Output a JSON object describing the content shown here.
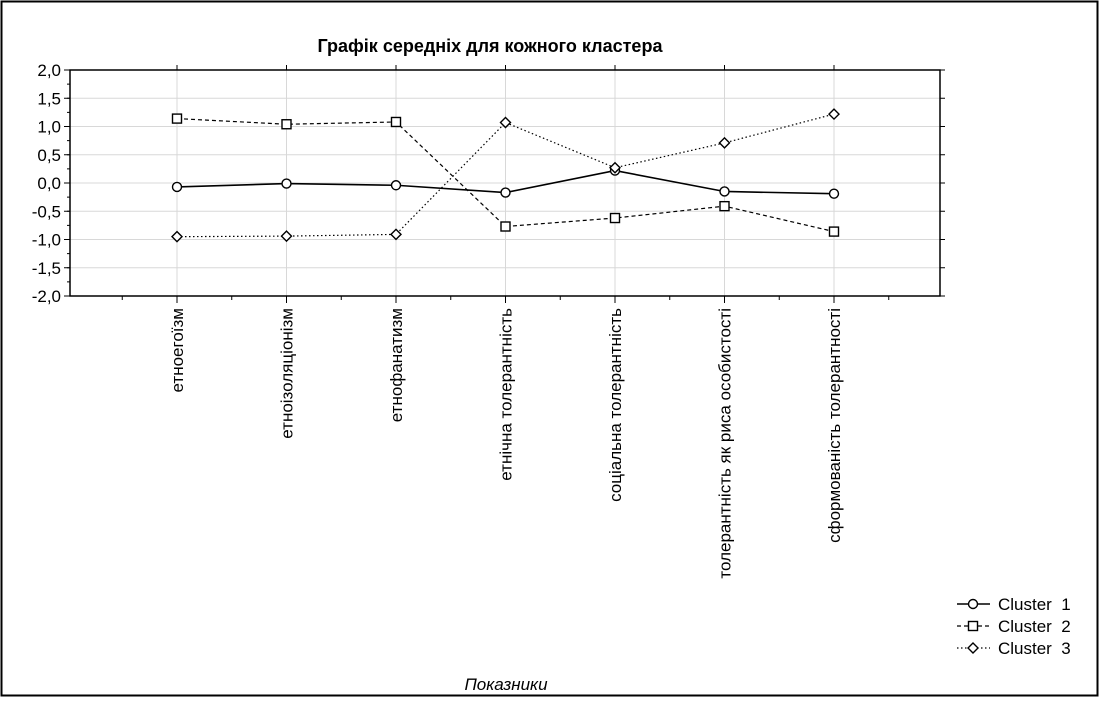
{
  "chart_data": {
    "type": "line",
    "title": "Графік середніх для кожного кластера",
    "xlabel": "Показники",
    "ylabel": "",
    "categories": [
      "етноегоїзм",
      "етноізоляціонізм",
      "етнофанатизм",
      "етнічна толерантність",
      "соціальна толерантність",
      "толерантність як риса особистості",
      "сформованість толерантності"
    ],
    "ylim": [
      -2.0,
      2.0
    ],
    "yticks": [
      "2,0",
      "1,5",
      "1,0",
      "0,5",
      "0,0",
      "-0,5",
      "-1,0",
      "-1,5",
      "-2,0"
    ],
    "ytick_values": [
      2.0,
      1.5,
      1.0,
      0.5,
      0.0,
      -0.5,
      -1.0,
      -1.5,
      -2.0
    ],
    "grid": true,
    "legend_position": "bottom-right",
    "series": [
      {
        "name": "Cluster  1",
        "marker": "circle",
        "line": "solid",
        "values": [
          -0.07,
          -0.01,
          -0.04,
          -0.17,
          0.22,
          -0.15,
          -0.19
        ]
      },
      {
        "name": "Cluster  2",
        "marker": "square",
        "line": "dashed",
        "values": [
          1.14,
          1.04,
          1.08,
          -0.77,
          -0.62,
          -0.41,
          -0.86
        ]
      },
      {
        "name": "Cluster  3",
        "marker": "diamond",
        "line": "dotted",
        "values": [
          -0.95,
          -0.94,
          -0.91,
          1.07,
          0.27,
          0.71,
          1.22
        ]
      }
    ]
  }
}
